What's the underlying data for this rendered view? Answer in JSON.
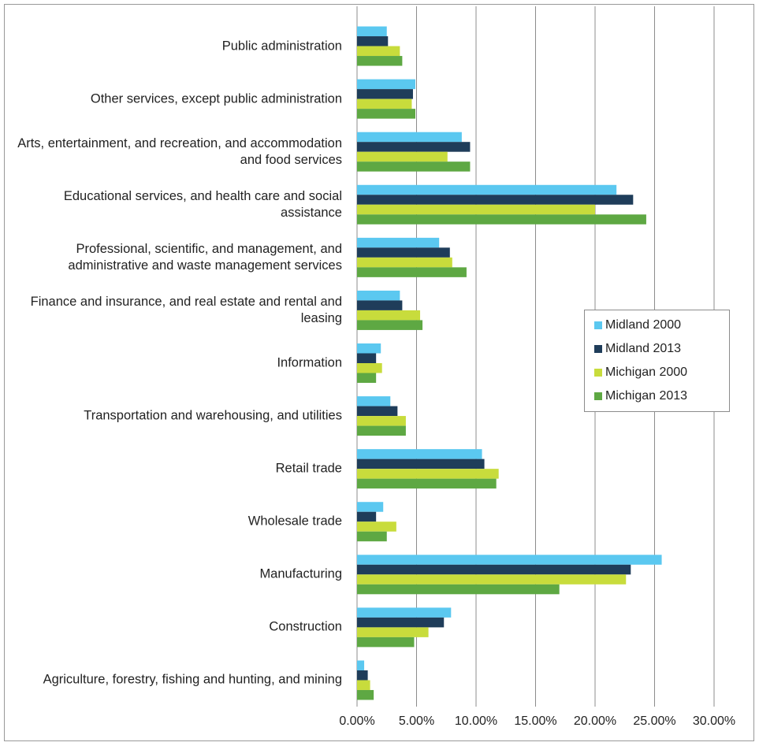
{
  "chart_data": {
    "type": "hbar",
    "categories": [
      "Public administration",
      "Other services, except public administration",
      "Arts, entertainment, and recreation, and accommodation and food services",
      "Educational services, and health care and social assistance",
      "Professional, scientific, and management, and administrative and waste management services",
      "Finance and insurance, and real estate and rental and leasing",
      "Information",
      "Transportation and warehousing, and utilities",
      "Retail trade",
      "Wholesale trade",
      "Manufacturing",
      "Construction",
      "Agriculture, forestry, fishing and hunting, and mining"
    ],
    "series": [
      {
        "name": "Midland 2000",
        "color": "#5bc8f0",
        "values": [
          2.5,
          4.9,
          8.8,
          21.8,
          6.9,
          3.6,
          2.0,
          2.8,
          10.5,
          2.2,
          25.6,
          7.9,
          0.6
        ]
      },
      {
        "name": "Midland 2013",
        "color": "#1f3d5a",
        "values": [
          2.6,
          4.7,
          9.5,
          23.2,
          7.8,
          3.8,
          1.6,
          3.4,
          10.7,
          1.6,
          23.0,
          7.3,
          0.9
        ]
      },
      {
        "name": "Michigan 2000",
        "color": "#c8dc3c",
        "values": [
          3.6,
          4.6,
          7.6,
          20.0,
          8.0,
          5.3,
          2.1,
          4.1,
          11.9,
          3.3,
          22.6,
          6.0,
          1.1
        ]
      },
      {
        "name": "Michigan 2013",
        "color": "#5ea843",
        "values": [
          3.8,
          4.9,
          9.5,
          24.3,
          9.2,
          5.5,
          1.6,
          4.1,
          11.7,
          2.5,
          17.0,
          4.8,
          1.4
        ]
      }
    ],
    "xlim": [
      0,
      30
    ],
    "xticks": [
      {
        "value": 0,
        "label": "0.00%"
      },
      {
        "value": 5,
        "label": "5.00%"
      },
      {
        "value": 10,
        "label": "10.00%"
      },
      {
        "value": 15,
        "label": "15.00%"
      },
      {
        "value": 20,
        "label": "20.00%"
      },
      {
        "value": 25,
        "label": "25.00%"
      },
      {
        "value": 30,
        "label": "30.00%"
      }
    ],
    "grid": true,
    "legend": "right"
  }
}
